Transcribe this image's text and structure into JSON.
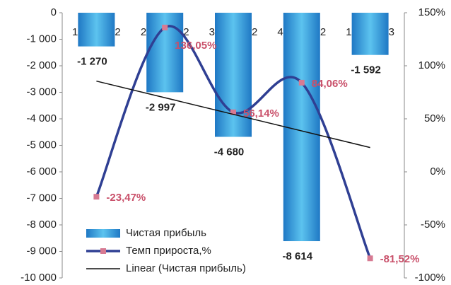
{
  "chart_data": {
    "type": "bar_line",
    "categories": [
      "1 кв. 2012",
      "2 кв. 2012",
      "3 кв. 2012",
      "4 кв. 2012",
      "1 кв. 2013"
    ],
    "series": [
      {
        "name": "Чистая прибыль",
        "color": "#2a8fd6",
        "values": [
          -1270,
          -2997,
          -4680,
          -8614,
          -1592
        ],
        "value_labels": [
          "-1 270",
          "-2 997",
          "-4 680",
          "-8 614",
          "-1 592"
        ]
      },
      {
        "name": "Темп прироста,%",
        "color": "#2f3f93",
        "marker_color": "#d77a92",
        "axis": "y2",
        "values": [
          -23.47,
          136.05,
          56.14,
          84.06,
          -81.52
        ],
        "value_labels": [
          "-23,47%",
          "136,05%",
          "56,14%",
          "84,06%",
          "-81,52%"
        ]
      }
    ],
    "trendline": {
      "name": "Linear (Чистая прибыль)",
      "color": "#111111",
      "of_series": 0
    },
    "ylim": [
      -10000,
      0
    ],
    "yticks": [
      {
        "value": -10000,
        "label": "-10 000"
      },
      {
        "value": -9000,
        "label": "-9 000"
      },
      {
        "value": -8000,
        "label": "-8 000"
      },
      {
        "value": -7000,
        "label": "-7 000"
      },
      {
        "value": -6000,
        "label": "-6 000"
      },
      {
        "value": -5000,
        "label": "-5 000"
      },
      {
        "value": -4000,
        "label": "-4 000"
      },
      {
        "value": -3000,
        "label": "-3 000"
      },
      {
        "value": -2000,
        "label": "-2 000"
      },
      {
        "value": -1000,
        "label": "-1 000"
      },
      0
    ],
    "y2lim": [
      -100,
      150
    ],
    "y2ticks": [
      {
        "value": -100,
        "label": "-100%"
      },
      {
        "value": -50,
        "label": "-50%"
      },
      {
        "value": 0,
        "label": "0%"
      },
      {
        "value": 50,
        "label": "50%"
      },
      {
        "value": 100,
        "label": "100%"
      },
      {
        "value": 150,
        "label": "150%"
      }
    ],
    "legend": "bottom-left"
  }
}
